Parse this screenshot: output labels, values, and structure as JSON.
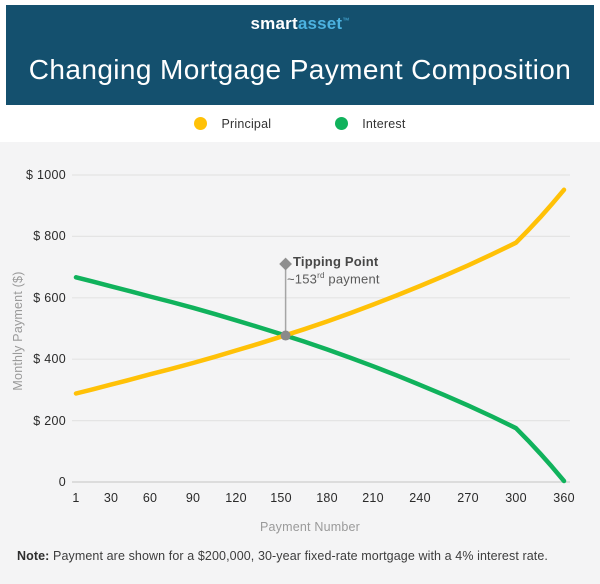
{
  "header": {
    "logo_part1": "smart",
    "logo_part2": "asset",
    "logo_tm": "™",
    "title": "Changing Mortgage Payment Composition",
    "background": "#14506e",
    "logo_accent": "#4cb2e0"
  },
  "legend": [
    {
      "label": "Principal",
      "color": "#ffc107"
    },
    {
      "label": "Interest",
      "color": "#10b25c"
    }
  ],
  "chart_data": {
    "type": "line",
    "title": "Changing Mortgage Payment Composition",
    "xlabel": "Payment Number",
    "ylabel": "Monthly Payment ($)",
    "xlim": [
      1,
      360
    ],
    "ylim": [
      0,
      1000
    ],
    "grid": "horizontal",
    "legend_position": "top",
    "x_ticks": [
      1,
      30,
      60,
      90,
      120,
      150,
      180,
      210,
      240,
      270,
      300,
      360
    ],
    "y_ticks": [
      {
        "label": "$ 1000",
        "value": 1000
      },
      {
        "label": "$ 800",
        "value": 800
      },
      {
        "label": "$ 600",
        "value": 600
      },
      {
        "label": "$ 400",
        "value": 400
      },
      {
        "label": "$ 200",
        "value": 200
      },
      {
        "label": "0",
        "value": 0
      }
    ],
    "x": [
      1,
      15,
      30,
      45,
      60,
      75,
      90,
      105,
      120,
      135,
      150,
      165,
      180,
      195,
      210,
      225,
      240,
      255,
      270,
      285,
      300,
      315,
      330,
      345,
      360
    ],
    "series": [
      {
        "name": "Principal",
        "color": "#ffc107",
        "values": [
          288.2,
          301.9,
          317.4,
          333.7,
          350.8,
          368.7,
          387.6,
          407.4,
          428.3,
          450.2,
          473.2,
          497.4,
          522.9,
          549.7,
          577.8,
          607.4,
          638.5,
          671.2,
          705.4,
          741.6,
          779.5,
          819.5,
          861.4,
          905.5,
          951.7
        ]
      },
      {
        "name": "Interest",
        "color": "#10b25c",
        "values": [
          666.7,
          652.9,
          637.5,
          621.2,
          604.1,
          586.2,
          567.3,
          547.5,
          526.6,
          504.7,
          481.7,
          457.5,
          432.0,
          405.2,
          377.1,
          347.5,
          316.4,
          283.7,
          249.5,
          213.3,
          175.4,
          135.4,
          93.5,
          49.4,
          3.1
        ]
      }
    ],
    "annotation": {
      "title": "Tipping Point",
      "detail_prefix": "~153",
      "detail_sup": "rd",
      "detail_suffix": " payment",
      "payment": 153,
      "value": 477
    }
  },
  "note": {
    "bold": "Note:",
    "text": " Payment are shown for a $200,000, 30-year fixed-rate mortgage with a 4% interest rate."
  }
}
